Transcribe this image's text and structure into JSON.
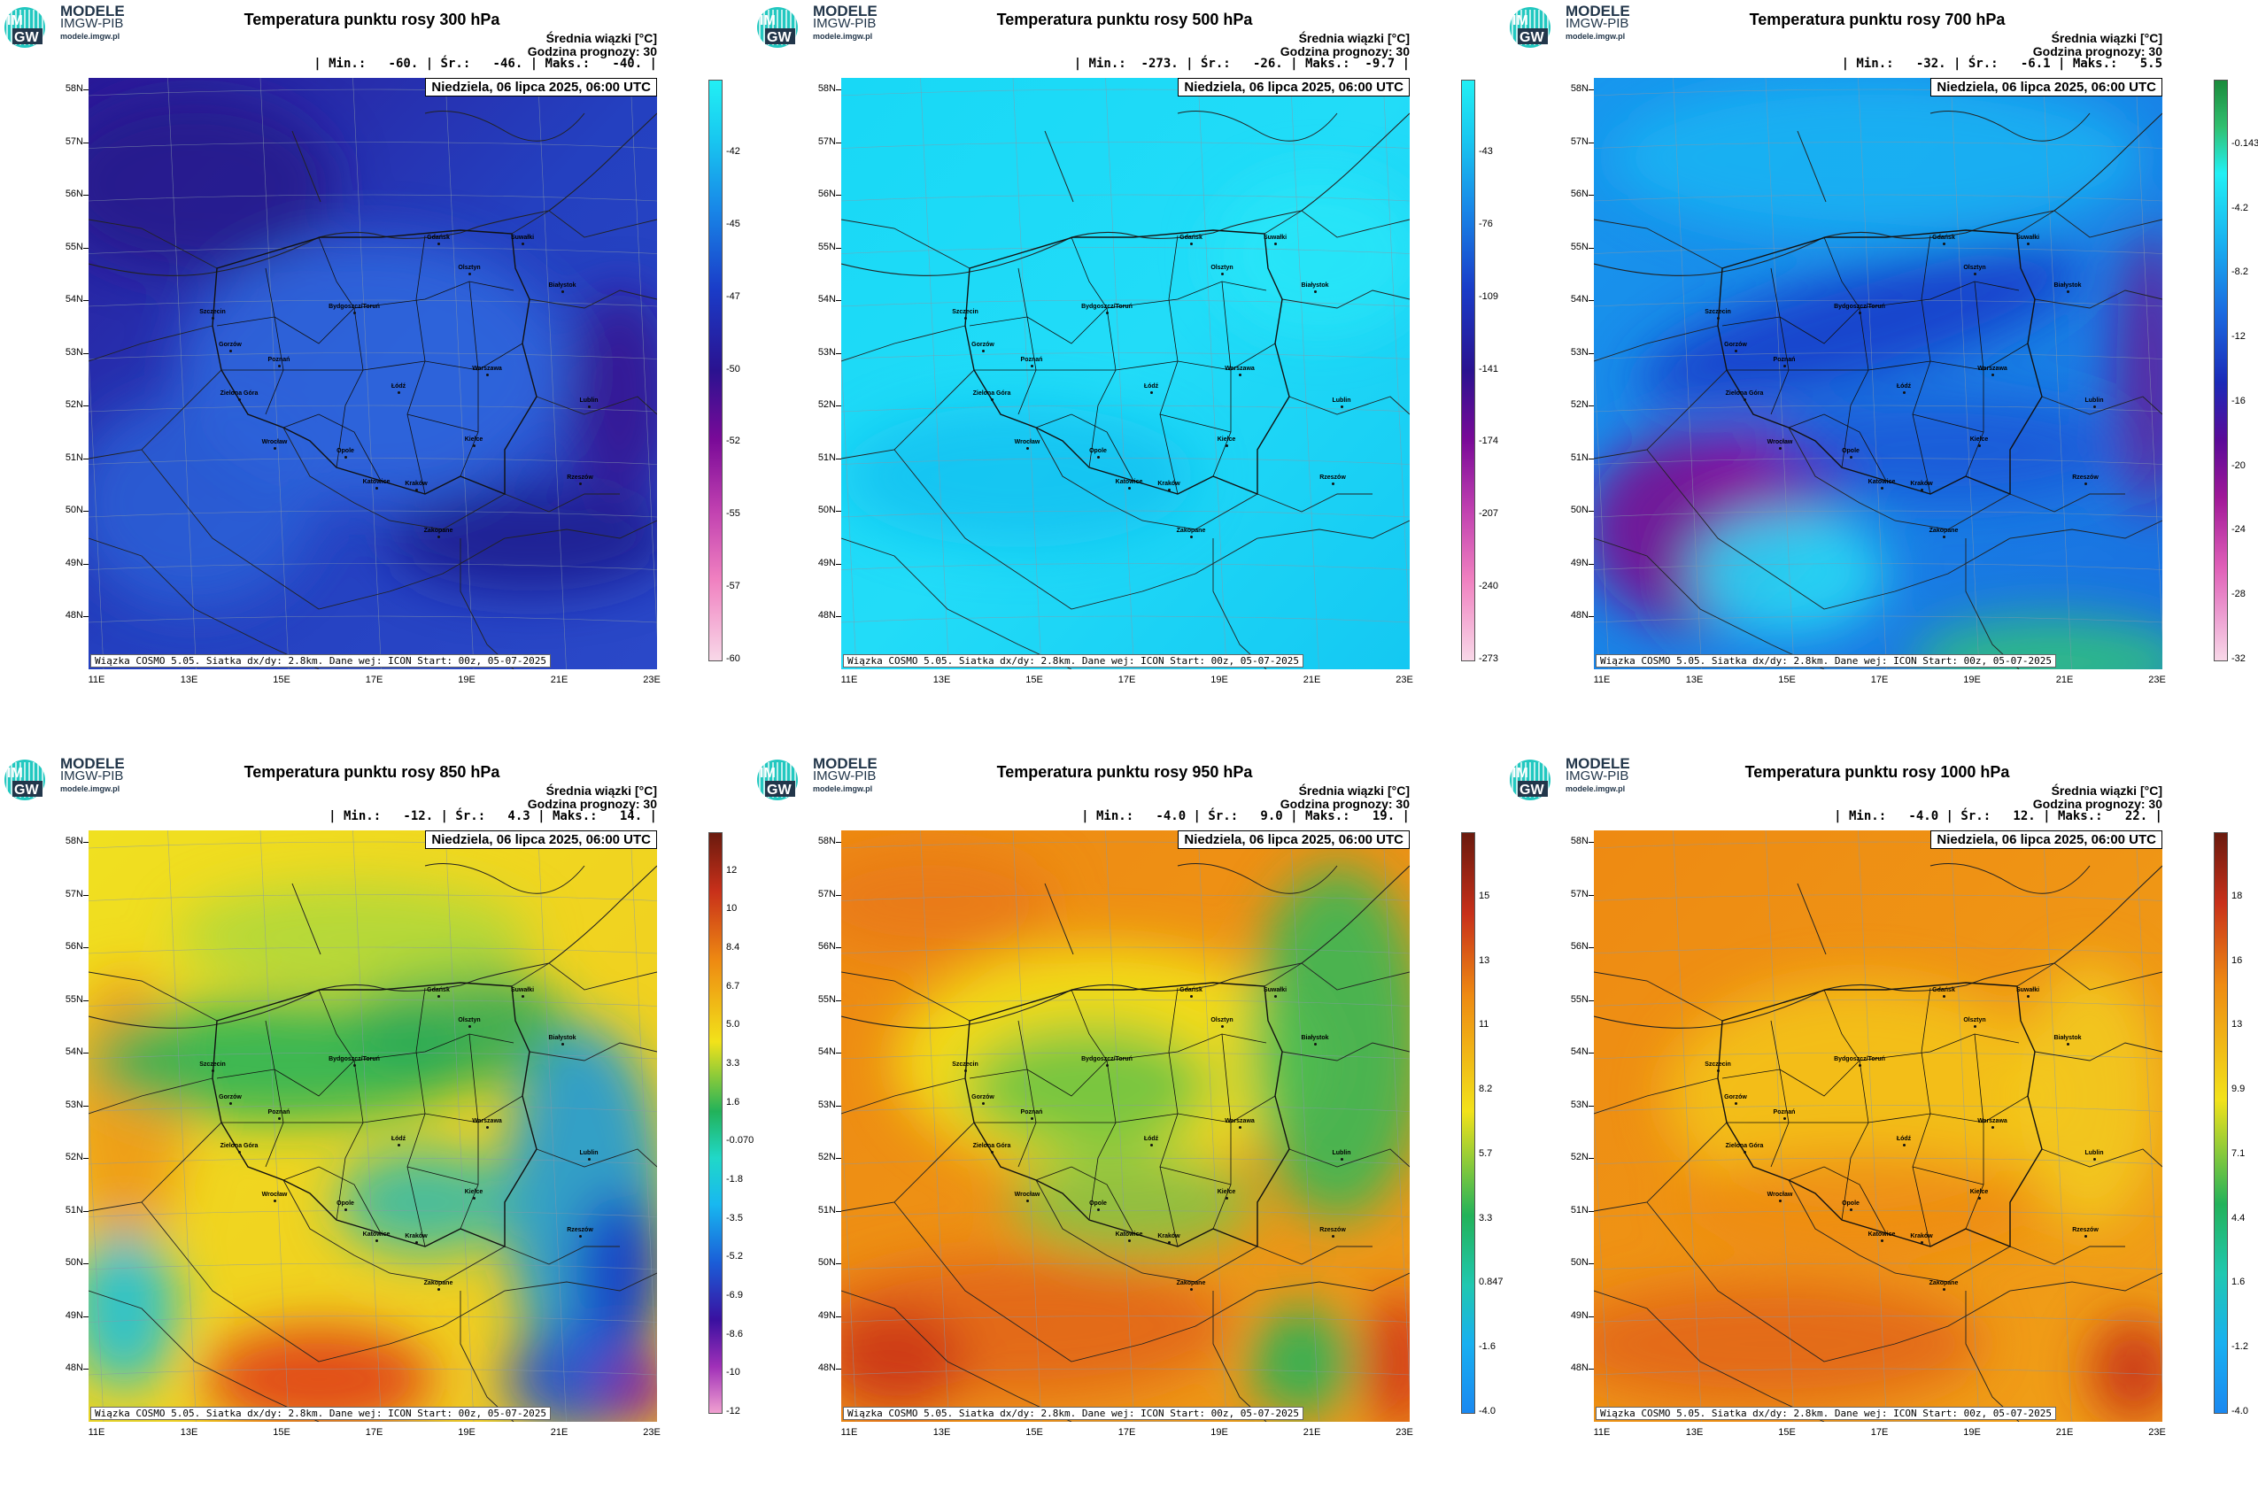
{
  "logo": {
    "line1": "MODELE",
    "line2": "IMGW-PIB",
    "line3": "modele.imgw.pl",
    "badge_top": "IM",
    "badge_bottom": "GW"
  },
  "header": {
    "subtitle": "Średnia wiązki [°C]",
    "forecast_hour": "Godzina prognozy: 30",
    "date": "Niedziela, 06 lipca 2025, 06:00 UTC",
    "footer": "Wiązka COSMO 5.05. Siatka dx/dy: 2.8km. Dane wej: ICON Start: 00z, 05-07-2025"
  },
  "lat_labels": [
    "58N",
    "57N",
    "56N",
    "55N",
    "54N",
    "53N",
    "52N",
    "51N",
    "50N",
    "49N",
    "48N"
  ],
  "lon_labels": [
    "11E",
    "13E",
    "15E",
    "17E",
    "19E",
    "21E",
    "23E"
  ],
  "cities": [
    "Gdańsk",
    "Olsztyn",
    "Suwałki",
    "Białystok",
    "Szczecin",
    "Bydgoszcz/Toruń",
    "Gorzów",
    "Poznań",
    "Warszawa",
    "Zielona Góra",
    "Łódź",
    "Lublin",
    "Wrocław",
    "Kielce",
    "Opole",
    "Rzeszów",
    "Katowice",
    "Kraków",
    "Zakopane"
  ],
  "colors": {
    "purple": "#6a0d9a",
    "navy": "#1a1a9e",
    "blue": "#1e5ed8",
    "cyan": "#10d8f8",
    "green": "#22b25a",
    "yellow": "#f2e21a",
    "orange": "#ee8a12",
    "red": "#c8301a",
    "darkred": "#6a1a0e",
    "pink": "#f0a0d0"
  },
  "panels": [
    {
      "title": "Temperatura punktu rosy 300 hPa",
      "stats": "| Min.:   -60. | Śr.:   -46. | Maks.:   -40. |",
      "cbar_ticks": [
        "-42",
        "-45",
        "-47",
        "-50",
        "-52",
        "-55",
        "-57",
        "-60"
      ]
    },
    {
      "title": "Temperatura punktu rosy 500 hPa",
      "stats": "| Min.:  -273. | Śr.:   -26. | Maks.:  -9.7 |",
      "cbar_ticks": [
        "-43",
        "-76",
        "-109",
        "-141",
        "-174",
        "-207",
        "-240",
        "-273"
      ]
    },
    {
      "title": "Temperatura punktu rosy 700 hPa",
      "stats": "| Min.:   -32. | Śr.:   -6.1 | Maks.:   5.5",
      "cbar_ticks": [
        "-0.143",
        "-4.2",
        "-8.2",
        "-12",
        "-16",
        "-20",
        "-24",
        "-28",
        "-32"
      ]
    },
    {
      "title": "Temperatura punktu rosy 850 hPa",
      "stats": "| Min.:   -12. | Śr.:   4.3 | Maks.:   14. |",
      "cbar_ticks": [
        "12",
        "10",
        "8.4",
        "6.7",
        "5.0",
        "3.3",
        "1.6",
        "-0.070",
        "-1.8",
        "-3.5",
        "-5.2",
        "-6.9",
        "-8.6",
        "-10",
        "-12"
      ]
    },
    {
      "title": "Temperatura punktu rosy 950 hPa",
      "stats": "| Min.:   -4.0 | Śr.:   9.0 | Maks.:   19. |",
      "cbar_ticks": [
        "15",
        "13",
        "11",
        "8.2",
        "5.7",
        "3.3",
        "0.847",
        "-1.6",
        "-4.0"
      ]
    },
    {
      "title": "Temperatura punktu rosy 1000 hPa",
      "stats": "| Min.:   -4.0 | Śr.:   12. | Maks.:   22. |",
      "cbar_ticks": [
        "18",
        "16",
        "13",
        "9.9",
        "7.1",
        "4.4",
        "1.6",
        "-1.2",
        "-4.0"
      ]
    }
  ]
}
